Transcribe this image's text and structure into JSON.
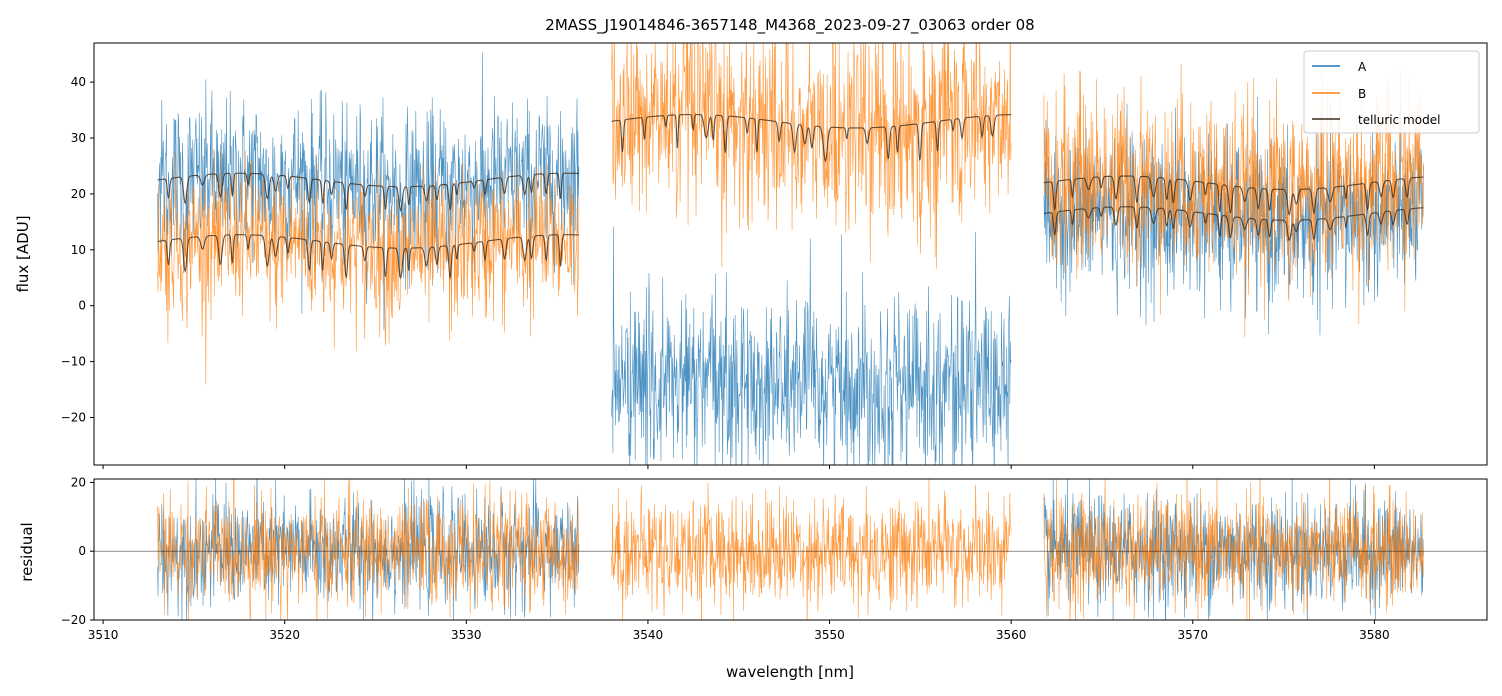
{
  "chart_data": [
    {
      "panel": "top",
      "type": "line",
      "title": "2MASS_J19014846-3657148_M4368_2023-09-27_03063  order 08",
      "xlabel": "",
      "ylabel": "flux [ADU]",
      "xlim": [
        3509.5,
        3586.2
      ],
      "ylim": [
        -28.5,
        47
      ],
      "xticks": [
        3510,
        3520,
        3530,
        3540,
        3550,
        3560,
        3570,
        3580
      ],
      "yticks": [
        -20,
        -10,
        0,
        10,
        20,
        30,
        40
      ],
      "ytick_labels": [
        "−20",
        "−10",
        "0",
        "10",
        "20",
        "30",
        "40"
      ],
      "legend": {
        "location": "top-right",
        "entries": [
          {
            "label": "A",
            "color": "#1f77b4"
          },
          {
            "label": "B",
            "color": "#ff7f0e"
          },
          {
            "label": "telluric model",
            "color": "#3b2a1a"
          }
        ]
      },
      "segments": [
        {
          "x_start": 3513.0,
          "x_end": 3536.2,
          "A_level": 22,
          "A_noise": 7,
          "B_level": 11.5,
          "B_noise": 6.5,
          "model_A": 22.5,
          "model_B": 11.5,
          "model_depth": 6
        },
        {
          "x_start": 3538.0,
          "x_end": 3560.0,
          "A_level": -14,
          "A_noise": 8,
          "B_level": 33,
          "B_noise": 9,
          "model_A": null,
          "model_B": 33,
          "model_depth": 7
        },
        {
          "x_start": 3561.8,
          "x_end": 3582.7,
          "A_level": 16,
          "A_noise": 7,
          "B_level": 21,
          "B_noise": 8,
          "model_A": 16.5,
          "model_B": 22,
          "model_depth": 6
        }
      ],
      "series": [
        {
          "name": "A",
          "color": "#1f77b4",
          "description": "observed flux, nod A"
        },
        {
          "name": "B",
          "color": "#ff7f0e",
          "description": "observed flux, nod B"
        },
        {
          "name": "telluric model",
          "color": "#3b2a1a",
          "description": "telluric model fit"
        }
      ]
    },
    {
      "panel": "bottom",
      "type": "line",
      "title": "",
      "xlabel": "wavelength [nm]",
      "ylabel": "residual",
      "xlim": [
        3509.5,
        3586.2
      ],
      "ylim": [
        -20,
        21
      ],
      "xticks": [
        3510,
        3520,
        3530,
        3540,
        3550,
        3560,
        3570,
        3580
      ],
      "xtick_labels": [
        "3510",
        "3520",
        "3530",
        "3540",
        "3550",
        "3560",
        "3570",
        "3580"
      ],
      "yticks": [
        -20,
        0,
        20
      ],
      "ytick_labels": [
        "−20",
        "0",
        "20"
      ],
      "zero_line": 0,
      "residual_noise": 8,
      "segments": [
        {
          "x_start": 3513.0,
          "x_end": 3536.2,
          "series": [
            "A",
            "B"
          ]
        },
        {
          "x_start": 3538.0,
          "x_end": 3560.0,
          "series": [
            "B"
          ]
        },
        {
          "x_start": 3561.8,
          "x_end": 3582.7,
          "series": [
            "A",
            "B"
          ]
        }
      ]
    }
  ]
}
